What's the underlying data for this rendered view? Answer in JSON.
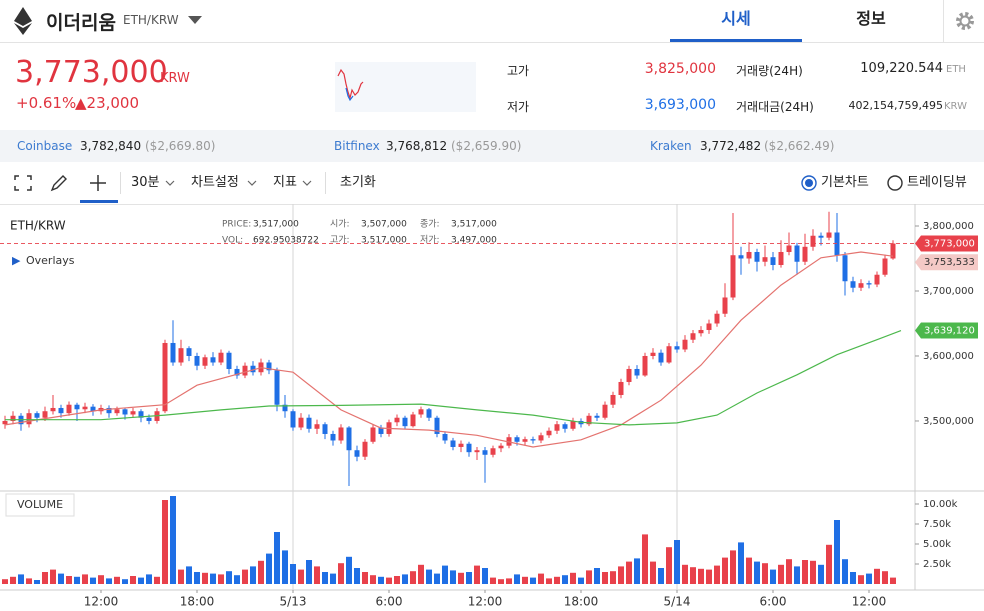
{
  "header": {
    "name": "이더리움",
    "pair": "ETH/KRW",
    "tabs": [
      "시세",
      "정보"
    ]
  },
  "ticker": {
    "price": "3,773,000",
    "unit": "KRW",
    "change_pct": "+0.61%",
    "change": "▲23,000",
    "stats": [
      {
        "label": "고가",
        "value": "3,825,000"
      },
      {
        "label": "저가",
        "value": "3,693,000"
      }
    ],
    "volume": [
      {
        "label": "거래량(24H)",
        "value": "109,220.544",
        "unit": "ETH"
      },
      {
        "label": "거래대금(24H)",
        "value": "402,154,759,495",
        "unit": "KRW"
      }
    ]
  },
  "exchanges": [
    {
      "name": "Coinbase",
      "price": "3,782,840",
      "usd": "($2,669.80)"
    },
    {
      "name": "Bitfinex",
      "price": "3,768,812",
      "usd": "($2,659.90)"
    },
    {
      "name": "Kraken",
      "price": "3,772,482",
      "usd": "($2,662.49)"
    }
  ],
  "toolbar": {
    "interval": "30분",
    "settings": "차트설정",
    "indicators": "지표",
    "reset": "초기화",
    "views": [
      "기본차트",
      "트레이딩뷰"
    ]
  },
  "chart_data": {
    "type": "candlestick",
    "pair": "ETH/KRW",
    "info": [
      {
        "label": "PRICE:",
        "value": "3,517,000"
      },
      {
        "label": "시가:",
        "value": "3,507,000"
      },
      {
        "label": "종가:",
        "value": "3,517,000"
      },
      {
        "label": "VOL:",
        "value": "692.95038722"
      },
      {
        "label": "고가:",
        "value": "3,517,000"
      },
      {
        "label": "저가:",
        "value": "3,497,000"
      }
    ],
    "overlays": "Overlays",
    "volume_label": "VOLUME",
    "up_color": "#e8414b",
    "down_color": "#1f6fe5",
    "ohlc": [
      [
        3495000,
        3508000,
        3488000,
        3500000
      ],
      [
        3500000,
        3515000,
        3495000,
        3508000
      ],
      [
        3508000,
        3512000,
        3485000,
        3495000
      ],
      [
        3495000,
        3518000,
        3490000,
        3512000
      ],
      [
        3512000,
        3515000,
        3498000,
        3505000
      ],
      [
        3505000,
        3522000,
        3500000,
        3515000
      ],
      [
        3515000,
        3540000,
        3510000,
        3520000
      ],
      [
        3520000,
        3525000,
        3505000,
        3512000
      ],
      [
        3512000,
        3530000,
        3508000,
        3525000
      ],
      [
        3525000,
        3528000,
        3500000,
        3518000
      ],
      [
        3518000,
        3528000,
        3512000,
        3522000
      ],
      [
        3522000,
        3526000,
        3508000,
        3515000
      ],
      [
        3515000,
        3525000,
        3510000,
        3520000
      ],
      [
        3520000,
        3524000,
        3505000,
        3512000
      ],
      [
        3512000,
        3522000,
        3508000,
        3518000
      ],
      [
        3518000,
        3520000,
        3502000,
        3510000
      ],
      [
        3510000,
        3520000,
        3505000,
        3515000
      ],
      [
        3515000,
        3518000,
        3498000,
        3505000
      ],
      [
        3505000,
        3510000,
        3495000,
        3500000
      ],
      [
        3500000,
        3520000,
        3496000,
        3515000
      ],
      [
        3515000,
        3625000,
        3512000,
        3620000
      ],
      [
        3620000,
        3655000,
        3585000,
        3590000
      ],
      [
        3590000,
        3625000,
        3585000,
        3612000
      ],
      [
        3612000,
        3615000,
        3592000,
        3600000
      ],
      [
        3600000,
        3605000,
        3578000,
        3585000
      ],
      [
        3585000,
        3602000,
        3580000,
        3598000
      ],
      [
        3598000,
        3606000,
        3585000,
        3590000
      ],
      [
        3590000,
        3610000,
        3586000,
        3605000
      ],
      [
        3605000,
        3608000,
        3572000,
        3580000
      ],
      [
        3580000,
        3585000,
        3565000,
        3570000
      ],
      [
        3570000,
        3590000,
        3566000,
        3585000
      ],
      [
        3585000,
        3592000,
        3570000,
        3575000
      ],
      [
        3575000,
        3596000,
        3570000,
        3590000
      ],
      [
        3590000,
        3594000,
        3572000,
        3578000
      ],
      [
        3578000,
        3582000,
        3515000,
        3525000
      ],
      [
        3525000,
        3540000,
        3505000,
        3515000
      ],
      [
        3515000,
        3518000,
        3485000,
        3490000
      ],
      [
        3490000,
        3512000,
        3486000,
        3505000
      ],
      [
        3505000,
        3510000,
        3482000,
        3488000
      ],
      [
        3488000,
        3502000,
        3480000,
        3495000
      ],
      [
        3495000,
        3498000,
        3472000,
        3480000
      ],
      [
        3480000,
        3485000,
        3462000,
        3470000
      ],
      [
        3470000,
        3495000,
        3465000,
        3490000
      ],
      [
        3490000,
        3492000,
        3400000,
        3455000
      ],
      [
        3455000,
        3462000,
        3438000,
        3445000
      ],
      [
        3445000,
        3472000,
        3440000,
        3468000
      ],
      [
        3468000,
        3495000,
        3465000,
        3490000
      ],
      [
        3490000,
        3494000,
        3475000,
        3480000
      ],
      [
        3480000,
        3502000,
        3476000,
        3498000
      ],
      [
        3498000,
        3510000,
        3492000,
        3505000
      ],
      [
        3505000,
        3508000,
        3488000,
        3492000
      ],
      [
        3492000,
        3514000,
        3490000,
        3510000
      ],
      [
        3510000,
        3522000,
        3505000,
        3518000
      ],
      [
        3518000,
        3520000,
        3500000,
        3505000
      ],
      [
        3505000,
        3508000,
        3475000,
        3480000
      ],
      [
        3480000,
        3484000,
        3465000,
        3470000
      ],
      [
        3470000,
        3474000,
        3455000,
        3460000
      ],
      [
        3460000,
        3470000,
        3452000,
        3465000
      ],
      [
        3465000,
        3468000,
        3445000,
        3452000
      ],
      [
        3452000,
        3460000,
        3440000,
        3455000
      ],
      [
        3455000,
        3460000,
        3405000,
        3448000
      ],
      [
        3448000,
        3462000,
        3444000,
        3458000
      ],
      [
        3458000,
        3466000,
        3452000,
        3462000
      ],
      [
        3462000,
        3480000,
        3458000,
        3475000
      ],
      [
        3475000,
        3478000,
        3462000,
        3468000
      ],
      [
        3468000,
        3476000,
        3462000,
        3472000
      ],
      [
        3472000,
        3476000,
        3465000,
        3470000
      ],
      [
        3470000,
        3482000,
        3466000,
        3478000
      ],
      [
        3478000,
        3490000,
        3474000,
        3485000
      ],
      [
        3485000,
        3500000,
        3480000,
        3495000
      ],
      [
        3495000,
        3498000,
        3482000,
        3488000
      ],
      [
        3488000,
        3505000,
        3485000,
        3500000
      ],
      [
        3500000,
        3504000,
        3490000,
        3495000
      ],
      [
        3495000,
        3512000,
        3492000,
        3508000
      ],
      [
        3508000,
        3512000,
        3500000,
        3505000
      ],
      [
        3505000,
        3530000,
        3502000,
        3525000
      ],
      [
        3525000,
        3545000,
        3520000,
        3540000
      ],
      [
        3540000,
        3565000,
        3535000,
        3560000
      ],
      [
        3560000,
        3585000,
        3555000,
        3580000
      ],
      [
        3580000,
        3586000,
        3565000,
        3570000
      ],
      [
        3570000,
        3605000,
        3568000,
        3600000
      ],
      [
        3600000,
        3612000,
        3595000,
        3605000
      ],
      [
        3605000,
        3610000,
        3585000,
        3590000
      ],
      [
        3590000,
        3620000,
        3588000,
        3615000
      ],
      [
        3615000,
        3622000,
        3605000,
        3610000
      ],
      [
        3610000,
        3632000,
        3606000,
        3625000
      ],
      [
        3625000,
        3640000,
        3620000,
        3635000
      ],
      [
        3635000,
        3646000,
        3630000,
        3640000
      ],
      [
        3640000,
        3656000,
        3634000,
        3650000
      ],
      [
        3650000,
        3670000,
        3645000,
        3665000
      ],
      [
        3665000,
        3712000,
        3660000,
        3690000
      ],
      [
        3690000,
        3820000,
        3686000,
        3755000
      ],
      [
        3755000,
        3768000,
        3725000,
        3750000
      ],
      [
        3750000,
        3775000,
        3742000,
        3760000
      ],
      [
        3760000,
        3765000,
        3730000,
        3745000
      ],
      [
        3745000,
        3770000,
        3738000,
        3752000
      ],
      [
        3752000,
        3760000,
        3732000,
        3740000
      ],
      [
        3740000,
        3778000,
        3736000,
        3760000
      ],
      [
        3760000,
        3790000,
        3755000,
        3770000
      ],
      [
        3770000,
        3774000,
        3725000,
        3745000
      ],
      [
        3745000,
        3788000,
        3740000,
        3768000
      ],
      [
        3768000,
        3795000,
        3762000,
        3785000
      ],
      [
        3785000,
        3790000,
        3770000,
        3782000
      ],
      [
        3782000,
        3822000,
        3778000,
        3790000
      ],
      [
        3790000,
        3820000,
        3745000,
        3755000
      ],
      [
        3755000,
        3760000,
        3693000,
        3715000
      ],
      [
        3715000,
        3722000,
        3698000,
        3705000
      ],
      [
        3705000,
        3718000,
        3700000,
        3712000
      ],
      [
        3712000,
        3716000,
        3704000,
        3710000
      ],
      [
        3710000,
        3730000,
        3706000,
        3725000
      ],
      [
        3725000,
        3756000,
        3722000,
        3750000
      ],
      [
        3750000,
        3778000,
        3748000,
        3773000
      ]
    ],
    "volume": [
      600,
      900,
      1200,
      700,
      500,
      1500,
      1800,
      1300,
      1000,
      900,
      1200,
      800,
      1100,
      700,
      900,
      600,
      1000,
      800,
      1200,
      900,
      10500,
      11000,
      1800,
      2200,
      1500,
      1400,
      1300,
      1200,
      1600,
      1100,
      1800,
      2200,
      2900,
      3800,
      6500,
      4200,
      2500,
      1800,
      3000,
      2200,
      1500,
      1300,
      2600,
      3400,
      2000,
      1500,
      1100,
      900,
      800,
      1000,
      1200,
      1600,
      2400,
      1800,
      1300,
      2300,
      1700,
      1400,
      1500,
      2300,
      2000,
      800,
      600,
      700,
      1200,
      900,
      800,
      1300,
      700,
      900,
      1100,
      1400,
      800,
      1700,
      2000,
      1500,
      1600,
      2200,
      2800,
      3200,
      6200,
      2800,
      2000,
      4600,
      5500,
      2400,
      2100,
      1900,
      1800,
      2300,
      3300,
      4200,
      5200,
      3300,
      2800,
      2600,
      1800,
      2400,
      3100,
      2200,
      3000,
      2900,
      2400,
      4900,
      8000,
      3100,
      1500,
      1100,
      1300,
      1900,
      1600,
      800
    ],
    "lines": [
      {
        "color": "#e4736f",
        "x": [
          0,
          12,
          20,
          24,
          32,
          36,
          42,
          47,
          53,
          59,
          66,
          72,
          77,
          82,
          87,
          92,
          97,
          102,
          107,
          111
        ],
        "values": [
          3494000,
          3517000,
          3525000,
          3555000,
          3582000,
          3575000,
          3517000,
          3489000,
          3486000,
          3478000,
          3460000,
          3471000,
          3494000,
          3532000,
          3586000,
          3655000,
          3709000,
          3751000,
          3760000,
          3753533
        ],
        "value_label": "3,753,533"
      },
      {
        "color": "#4cb84c",
        "x": [
          0,
          12,
          20,
          27,
          33,
          42,
          52,
          59,
          66,
          72,
          78,
          84,
          89,
          94,
          99,
          104,
          109,
          112
        ],
        "values": [
          3502000,
          3502000,
          3509000,
          3517000,
          3523000,
          3524000,
          3526000,
          3517000,
          3509000,
          3498000,
          3494000,
          3497000,
          3509000,
          3543000,
          3571000,
          3602000,
          3625000,
          3639120
        ],
        "value_label": "3,639,120"
      }
    ],
    "last_price": {
      "value": 3773000,
      "label": "3,773,000"
    },
    "xlim": [
      -0.625,
      113.75
    ],
    "xticks": [
      {
        "value": 12,
        "label": "12:00"
      },
      {
        "value": 24,
        "label": "18:00"
      },
      {
        "value": 36,
        "label": "5/13"
      },
      {
        "value": 48,
        "label": "6:00"
      },
      {
        "value": 60,
        "label": "12:00"
      },
      {
        "value": 72,
        "label": "18:00"
      },
      {
        "value": 84,
        "label": "5/14"
      },
      {
        "value": 96,
        "label": "6:00"
      },
      {
        "value": 108,
        "label": "12:00"
      }
    ],
    "ylim": [
      3393800,
      3832300
    ],
    "yticks": [
      {
        "value": 3500000,
        "label": "3,500,000"
      },
      {
        "value": 3600000,
        "label": "3,600,000"
      },
      {
        "value": 3700000,
        "label": "3,700,000"
      },
      {
        "value": 3800000,
        "label": "3,800,000"
      }
    ],
    "y2lim": [
      0,
      11500
    ],
    "y2ticks": [
      {
        "value": 2500,
        "label": "2.50k"
      },
      {
        "value": 5000,
        "label": "5.00k"
      },
      {
        "value": 7500,
        "label": "7.50k"
      },
      {
        "value": 10000,
        "label": "10.00k"
      }
    ]
  }
}
